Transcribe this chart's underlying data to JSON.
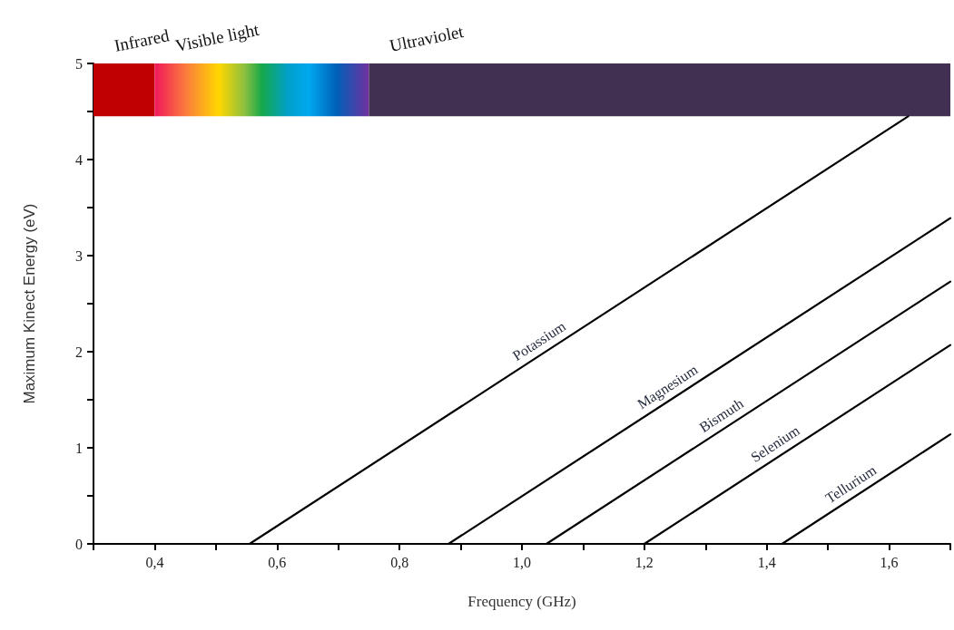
{
  "chart_data": {
    "type": "line",
    "xlabel": "Frequency (GHz)",
    "ylabel": "Maximum Kinect Energy (eV)",
    "xlim": [
      0.3,
      1.7
    ],
    "xticks": [
      {
        "value": 0.3,
        "label": null
      },
      {
        "value": 0.4,
        "label": "0,4"
      },
      {
        "value": 0.5,
        "label": null
      },
      {
        "value": 0.6,
        "label": "0,6"
      },
      {
        "value": 0.7,
        "label": null
      },
      {
        "value": 0.8,
        "label": "0,8"
      },
      {
        "value": 0.9,
        "label": null
      },
      {
        "value": 1.0,
        "label": "1,0"
      },
      {
        "value": 1.1,
        "label": null
      },
      {
        "value": 1.2,
        "label": "1,2"
      },
      {
        "value": 1.3,
        "label": null
      },
      {
        "value": 1.4,
        "label": "1,4"
      },
      {
        "value": 1.5,
        "label": null
      },
      {
        "value": 1.6,
        "label": "1,6"
      },
      {
        "value": 1.7,
        "label": null
      }
    ],
    "ylim": [
      0,
      5
    ],
    "yticks": [
      0,
      {
        "value": 0.5,
        "label": null
      },
      1,
      {
        "value": 1.5,
        "label": null
      },
      2,
      {
        "value": 2.5,
        "label": null
      },
      3,
      {
        "value": 3.5,
        "label": null
      },
      4,
      {
        "value": 4.5,
        "label": null
      },
      5
    ],
    "grid": false,
    "legend": false,
    "marker": "none",
    "line_style": "solid",
    "series": [
      {
        "name": "Potassium",
        "color": "#000000",
        "x": [
          0.555,
          1.631
        ],
        "values": [
          0,
          4.45
        ]
      },
      {
        "name": "Magnesium",
        "color": "#000000",
        "x": [
          0.88,
          1.7
        ],
        "values": [
          0,
          3.39
        ]
      },
      {
        "name": "Bismuth",
        "color": "#000000",
        "x": [
          1.04,
          1.7
        ],
        "values": [
          0,
          2.73
        ]
      },
      {
        "name": "Selenium",
        "color": "#000000",
        "x": [
          1.2,
          1.7
        ],
        "values": [
          0,
          2.07
        ]
      },
      {
        "name": "Tellurium",
        "color": "#000000",
        "x": [
          1.425,
          1.7
        ],
        "values": [
          0,
          1.14
        ]
      }
    ],
    "bands": [
      {
        "axis": "x",
        "from": 0.3,
        "to": 0.4,
        "label": "Infrared",
        "color": "#c00000"
      },
      {
        "axis": "x",
        "from": 0.4,
        "to": 0.75,
        "label": "Visible light"
      },
      {
        "axis": "x",
        "from": 0.75,
        "to": 1.7,
        "label": "Ultraviolet",
        "color": "#413051"
      }
    ]
  }
}
